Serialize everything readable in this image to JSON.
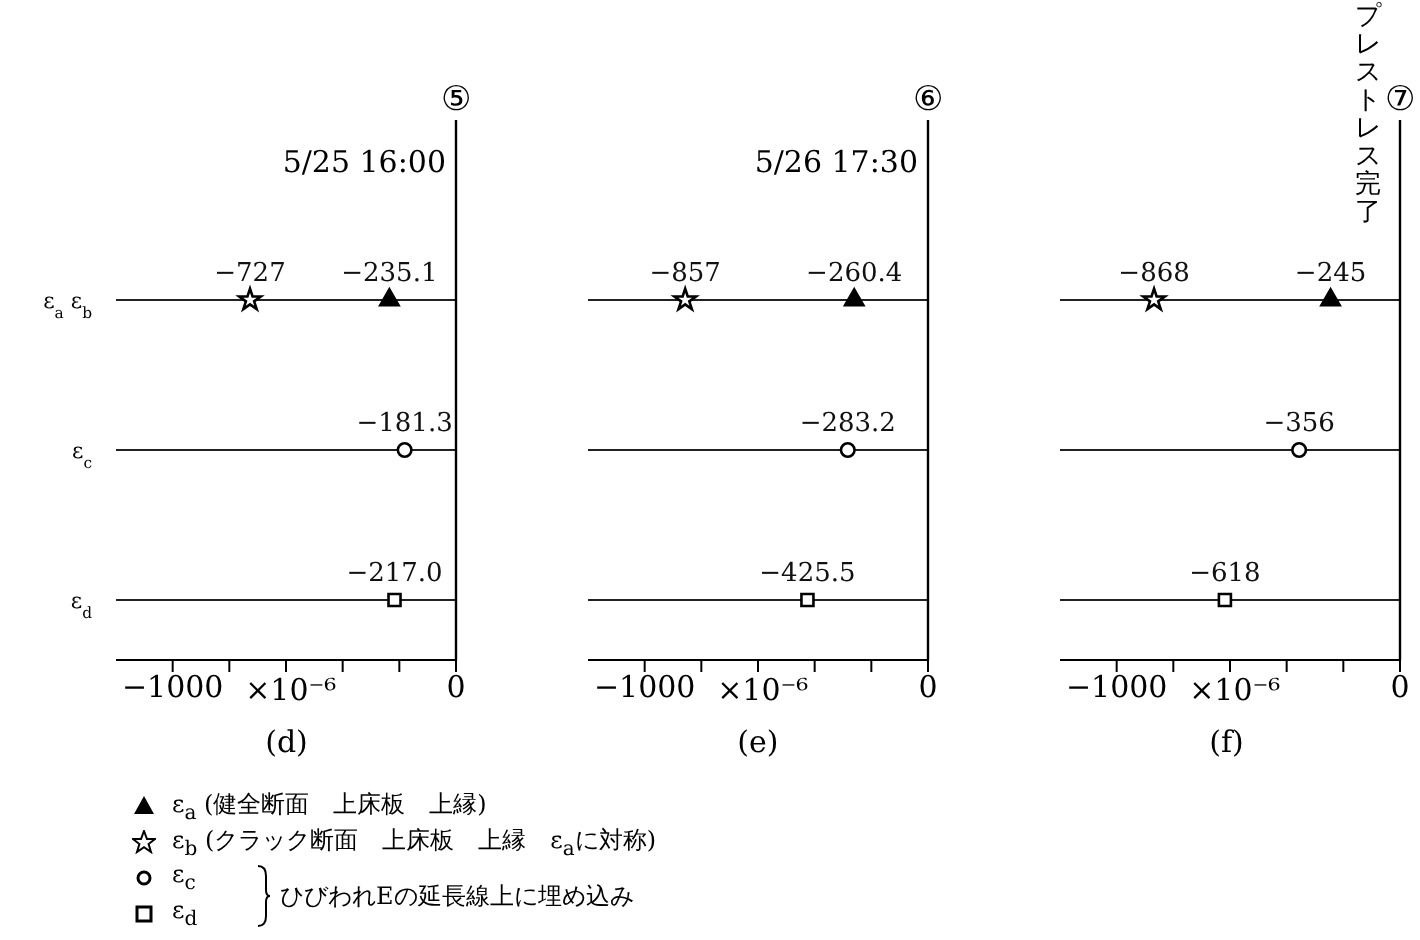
{
  "chart_data": [
    {
      "type": "scatter",
      "orientation": "horizontal",
      "title": "(d)",
      "xlabel": "×10⁻⁶",
      "categories": [
        "ε$_{a}$ ε$_{b}$",
        "ε$_{c}$",
        "ε$_{d}$"
      ],
      "xlim": [
        -1200,
        0
      ],
      "xticks": [
        {
          "value": -1000,
          "label": "−1000"
        },
        {
          "value": -800,
          "label": null
        },
        {
          "value": -600,
          "label": null
        },
        {
          "value": -400,
          "label": null
        },
        {
          "value": -200,
          "label": null
        },
        {
          "value": 0,
          "label": "0"
        }
      ],
      "grid": "y",
      "legend": "bottom",
      "ref_lines": [
        {
          "axis": "x",
          "value": 0,
          "label": "⑤"
        }
      ],
      "annotations": [
        "5/25 16:00",
        "ひびわれEの延長線上に埋め込み"
      ],
      "series": [
        {
          "name": "ε$_{a}$ (健全断面　上床板　上縁)",
          "color": "#000000",
          "marker": "triangle",
          "values": [
            -235.1,
            null,
            null
          ],
          "value_labels": [
            "−235.1",
            null,
            null
          ]
        },
        {
          "name": "ε$_{b}$ (クラック断面　上床板　上縁　ε$_{a}$に対称)",
          "color": "#000000",
          "marker": "star",
          "values": [
            -727,
            null,
            null
          ],
          "value_labels": [
            "−727",
            null,
            null
          ]
        },
        {
          "name": "ε$_{c}$",
          "color": "#000000",
          "marker": "circle",
          "values": [
            null,
            -181.3,
            null
          ],
          "value_labels": [
            null,
            "−181.3",
            null
          ]
        },
        {
          "name": "ε$_{d}$",
          "color": "#000000",
          "marker": "square",
          "values": [
            null,
            null,
            -217.0
          ],
          "value_labels": [
            null,
            null,
            "−217.0"
          ]
        }
      ]
    },
    {
      "type": "scatter",
      "orientation": "horizontal",
      "title": "(e)",
      "xlabel": "×10⁻⁶",
      "categories": [
        null,
        null,
        null
      ],
      "tick_labels": "x",
      "xlim": [
        -1200,
        0
      ],
      "xticks": [
        {
          "value": -1000,
          "label": "−1000"
        },
        {
          "value": -800,
          "label": null
        },
        {
          "value": -600,
          "label": null
        },
        {
          "value": -400,
          "label": null
        },
        {
          "value": -200,
          "label": null
        },
        {
          "value": 0,
          "label": "0"
        }
      ],
      "grid": "y",
      "ref_lines": [
        {
          "axis": "x",
          "value": 0,
          "label": "⑥"
        }
      ],
      "annotations": [
        "5/26 17:30"
      ],
      "series": [
        {
          "color": "#000000",
          "marker": "triangle",
          "values": [
            -260.4,
            null,
            null
          ],
          "value_labels": [
            "−260.4",
            null,
            null
          ]
        },
        {
          "color": "#000000",
          "marker": "star",
          "values": [
            -857,
            null,
            null
          ],
          "value_labels": [
            "−857",
            null,
            null
          ]
        },
        {
          "color": "#000000",
          "marker": "circle",
          "values": [
            null,
            -283.2,
            null
          ],
          "value_labels": [
            null,
            "−283.2",
            null
          ]
        },
        {
          "color": "#000000",
          "marker": "square",
          "values": [
            null,
            null,
            -425.5
          ],
          "value_labels": [
            null,
            null,
            "−425.5"
          ]
        }
      ]
    },
    {
      "type": "scatter",
      "orientation": "horizontal",
      "title": "(f)",
      "xlabel": "×10⁻⁶",
      "categories": [
        null,
        null,
        null
      ],
      "tick_labels": "x",
      "xlim": [
        -1200,
        0
      ],
      "xticks": [
        {
          "value": -1000,
          "label": "−1000"
        },
        {
          "value": -800,
          "label": null
        },
        {
          "value": -600,
          "label": null
        },
        {
          "value": -400,
          "label": null
        },
        {
          "value": -200,
          "label": null
        },
        {
          "value": 0,
          "label": "0"
        }
      ],
      "grid": "y",
      "ref_lines": [
        {
          "axis": "x",
          "value": 0,
          "label": "⑦"
        }
      ],
      "annotations": [
        "プレストレス完了"
      ],
      "series": [
        {
          "color": "#000000",
          "marker": "triangle",
          "values": [
            -245,
            null,
            null
          ],
          "value_labels": [
            "−245",
            null,
            null
          ]
        },
        {
          "color": "#000000",
          "marker": "star",
          "values": [
            -868,
            null,
            null
          ],
          "value_labels": [
            "−868",
            null,
            null
          ]
        },
        {
          "color": "#000000",
          "marker": "circle",
          "values": [
            null,
            -356,
            null
          ],
          "value_labels": [
            null,
            "−356",
            null
          ]
        },
        {
          "color": "#000000",
          "marker": "square",
          "values": [
            null,
            null,
            -618
          ],
          "value_labels": [
            null,
            null,
            "−618"
          ]
        }
      ]
    }
  ]
}
